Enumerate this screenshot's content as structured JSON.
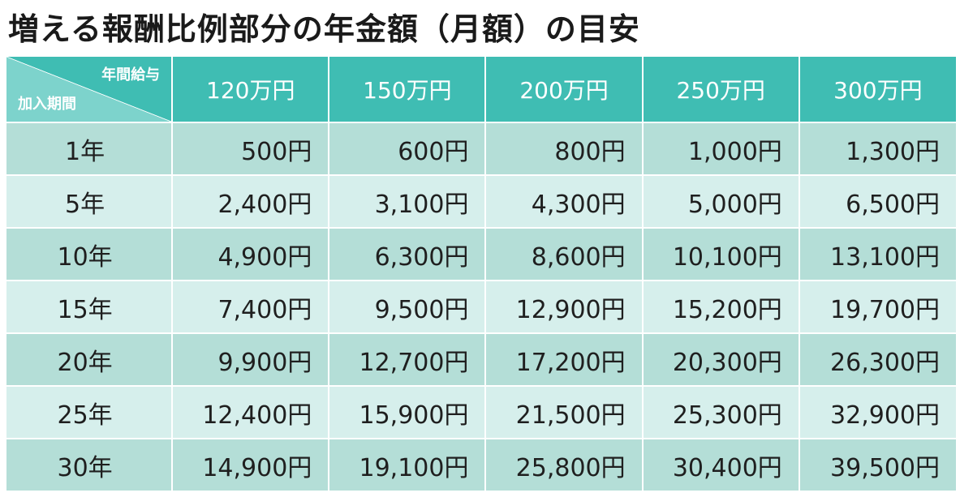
{
  "title": "増える報酬比例部分の年金額（月額）の目安",
  "header": {
    "corner_top": "年間給与",
    "corner_bottom": "加入期間",
    "columns": [
      "120万円",
      "150万円",
      "200万円",
      "250万円",
      "300万円"
    ]
  },
  "rows": [
    {
      "period": "1年",
      "values": [
        "500円",
        "600円",
        "800円",
        "1,000円",
        "1,300円"
      ]
    },
    {
      "period": "5年",
      "values": [
        "2,400円",
        "3,100円",
        "4,300円",
        "5,000円",
        "6,500円"
      ]
    },
    {
      "period": "10年",
      "values": [
        "4,900円",
        "6,300円",
        "8,600円",
        "10,100円",
        "13,100円"
      ]
    },
    {
      "period": "15年",
      "values": [
        "7,400円",
        "9,500円",
        "12,900円",
        "15,200円",
        "19,700円"
      ]
    },
    {
      "period": "20年",
      "values": [
        "9,900円",
        "12,700円",
        "17,200円",
        "20,300円",
        "26,300円"
      ]
    },
    {
      "period": "25年",
      "values": [
        "12,400円",
        "15,900円",
        "21,500円",
        "25,300円",
        "32,900円"
      ]
    },
    {
      "period": "30年",
      "values": [
        "14,900円",
        "19,100円",
        "25,800円",
        "30,400円",
        "39,500円"
      ]
    }
  ],
  "colors": {
    "header_bg": "#3fbdb3",
    "corner_lower": "#7dd3cc",
    "row_odd": "#b4ded7",
    "row_even": "#d6efec"
  }
}
